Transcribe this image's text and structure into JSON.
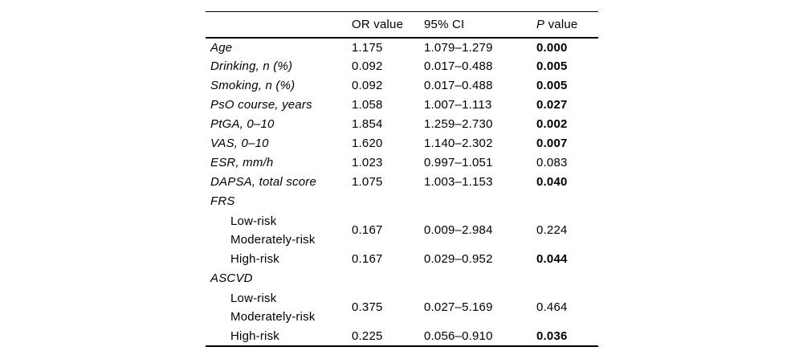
{
  "table": {
    "header": {
      "variable": "",
      "or": "OR value",
      "ci": "95% CI",
      "p_italic": "P",
      "p_rest": " value"
    },
    "rows": [
      {
        "label": "Age",
        "or": "1.175",
        "ci": "1.079–1.279",
        "p": "0.000",
        "p_bold": true
      },
      {
        "label": "Drinking, n (%)",
        "or": "0.092",
        "ci": "0.017–0.488",
        "p": "0.005",
        "p_bold": true
      },
      {
        "label": "Smoking, n (%)",
        "or": "0.092",
        "ci": "0.017–0.488",
        "p": "0.005",
        "p_bold": true
      },
      {
        "label": "PsO course, years",
        "or": "1.058",
        "ci": "1.007–1.113",
        "p": "0.027",
        "p_bold": true
      },
      {
        "label": "PtGA, 0–10",
        "or": "1.854",
        "ci": "1.259–2.730",
        "p": "0.002",
        "p_bold": true
      },
      {
        "label": "VAS, 0–10",
        "or": "1.620",
        "ci": "1.140–2.302",
        "p": "0.007",
        "p_bold": true
      },
      {
        "label": "ESR, mm/h",
        "or": "1.023",
        "ci": "0.997–1.051",
        "p": "0.083",
        "p_bold": false
      },
      {
        "label": "DAPSA, total score",
        "or": "1.075",
        "ci": "1.003–1.153",
        "p": "0.040",
        "p_bold": true
      },
      {
        "label": "FRS",
        "section": true
      },
      {
        "label": "Low-risk",
        "label2": "Moderately-risk",
        "or": "0.167",
        "ci": "0.009–2.984",
        "p": "0.224",
        "p_bold": false
      },
      {
        "label": "High-risk",
        "or": "0.167",
        "ci": "0.029–0.952",
        "p": "0.044",
        "p_bold": true
      },
      {
        "label": "ASCVD",
        "section": true
      },
      {
        "label": "Low-risk",
        "label2": "Moderately-risk",
        "or": "0.375",
        "ci": "0.027–5.169",
        "p": "0.464",
        "p_bold": false
      },
      {
        "label": "High-risk",
        "or": "0.225",
        "ci": "0.056–0.910",
        "p": "0.036",
        "p_bold": true
      }
    ]
  }
}
